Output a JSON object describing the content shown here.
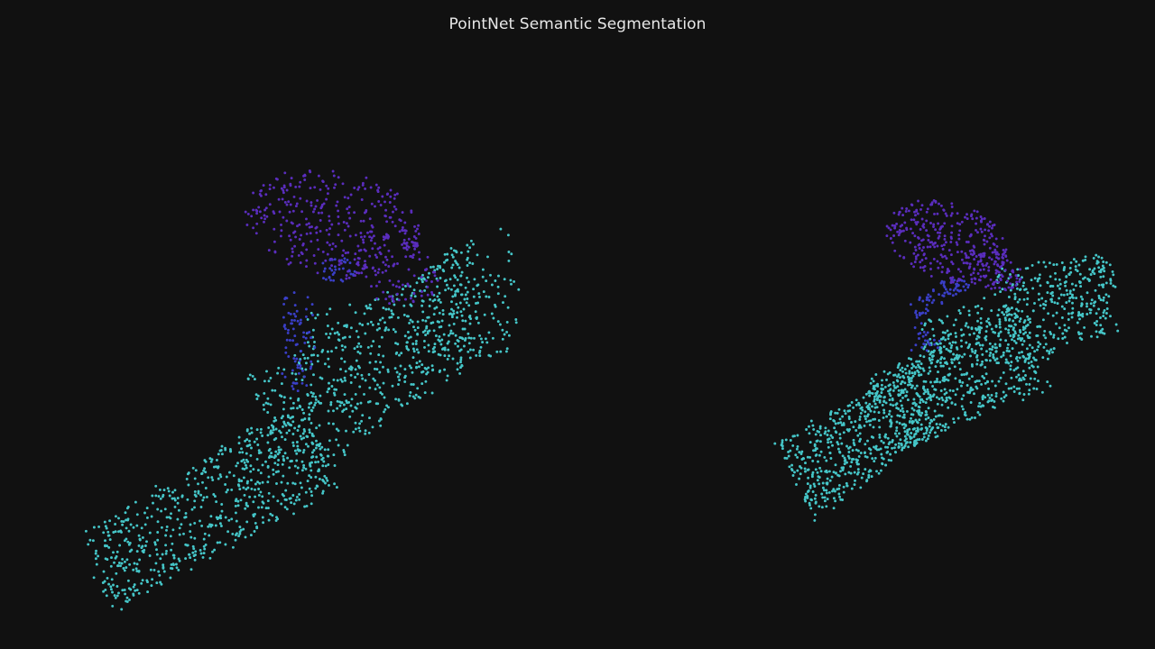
{
  "title": "PointNet Semantic Segmentation",
  "colors": {
    "background": "#111111",
    "title_text": "#e8e8e8",
    "body": "#45c6c8",
    "junction": "#3a3fc7",
    "head": "#5a2dbd"
  },
  "chart_data": [
    {
      "type": "scatter",
      "title": "",
      "xlabel": "",
      "ylabel": "",
      "grid": false,
      "series": [
        {
          "segment": "body",
          "color": "#45c6c8",
          "approx_point_count": 1300
        },
        {
          "segment": "junction",
          "color": "#3a3fc7",
          "approx_point_count": 110
        },
        {
          "segment": "head",
          "color": "#5a2dbd",
          "approx_point_count": 420
        }
      ]
    },
    {
      "type": "scatter",
      "title": "",
      "xlabel": "",
      "ylabel": "",
      "grid": false,
      "series": [
        {
          "segment": "body",
          "color": "#45c6c8",
          "approx_point_count": 1350
        },
        {
          "segment": "junction",
          "color": "#3a3fc7",
          "approx_point_count": 90
        },
        {
          "segment": "head",
          "color": "#5a2dbd",
          "approx_point_count": 380
        }
      ]
    }
  ]
}
